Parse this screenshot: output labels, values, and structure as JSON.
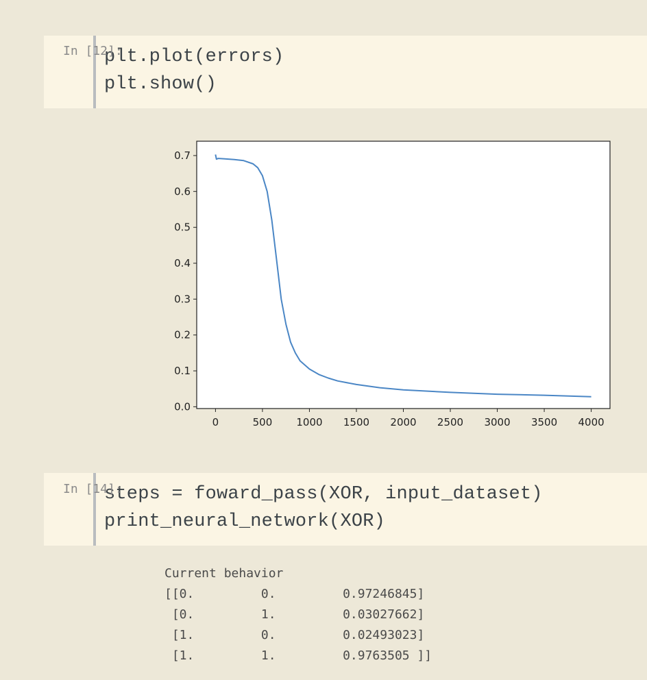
{
  "cells": [
    {
      "prompt": "In [12]:",
      "code": [
        "plt.plot(errors)",
        "plt.show()"
      ]
    },
    {
      "prompt": "In [14]:",
      "code": [
        "steps = foward_pass(XOR, input_dataset)",
        "print_neural_network(XOR)"
      ]
    }
  ],
  "output2": {
    "lines": [
      "Current behavior",
      "[[0.         0.         0.97246845]",
      " [0.         1.         0.03027662]",
      " [1.         0.         0.02493023]",
      " [1.         1.         0.9763505 ]]"
    ]
  },
  "chart_data": {
    "type": "line",
    "title": "",
    "xlabel": "",
    "ylabel": "",
    "xlim": [
      -200,
      4200
    ],
    "ylim": [
      -0.005,
      0.74
    ],
    "xticks": [
      0,
      500,
      1000,
      1500,
      2000,
      2500,
      3000,
      3500,
      4000
    ],
    "xtick_labels": [
      "0",
      "500",
      "1000",
      "1500",
      "2000",
      "2500",
      "3000",
      "3500",
      "4000"
    ],
    "yticks": [
      0.0,
      0.1,
      0.2,
      0.3,
      0.4,
      0.5,
      0.6,
      0.7
    ],
    "ytick_labels": [
      "0.0",
      "0.1",
      "0.2",
      "0.3",
      "0.4",
      "0.5",
      "0.6",
      "0.7"
    ],
    "grid": false,
    "line_color": "#4a86c5",
    "series": [
      {
        "x": [
          0,
          10,
          30,
          100,
          200,
          300,
          400,
          450,
          500,
          550,
          600,
          650,
          700,
          750,
          800,
          850,
          900,
          1000,
          1100,
          1200,
          1300,
          1500,
          1750,
          2000,
          2500,
          3000,
          3500,
          4000
        ],
        "values": [
          0.703,
          0.69,
          0.692,
          0.691,
          0.689,
          0.686,
          0.677,
          0.666,
          0.644,
          0.6,
          0.52,
          0.41,
          0.3,
          0.23,
          0.18,
          0.15,
          0.128,
          0.105,
          0.09,
          0.08,
          0.072,
          0.062,
          0.053,
          0.047,
          0.04,
          0.035,
          0.032,
          0.028
        ]
      }
    ]
  }
}
